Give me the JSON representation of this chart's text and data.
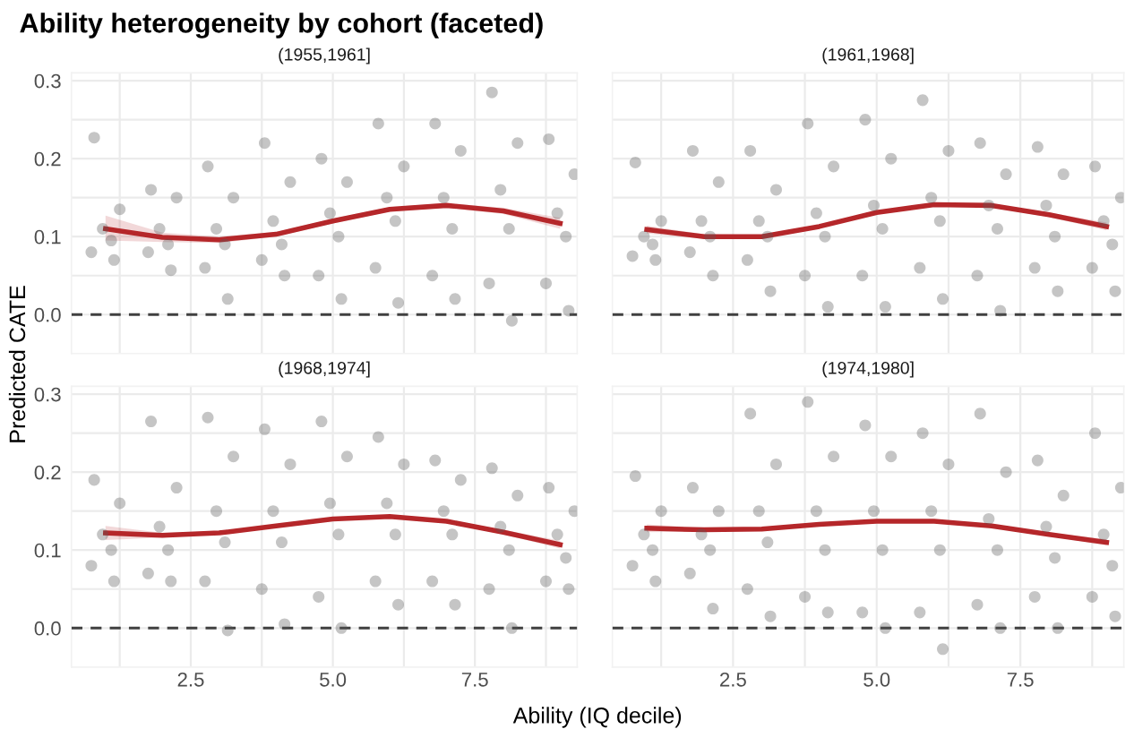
{
  "chart_data": [
    {
      "type": "scatter",
      "title": "Ability heterogeneity by cohort (faceted)",
      "subtitle": "(1955,1961]",
      "ylabel": "Predicted CATE",
      "xlim": [
        0.4,
        9.3
      ],
      "ylim": [
        -0.05,
        0.31
      ],
      "xticks": [
        {
          "value": 1.25,
          "label": null
        },
        {
          "value": 2.5,
          "label": null
        },
        {
          "value": 3.75,
          "label": null
        },
        {
          "value": 5,
          "label": null
        },
        {
          "value": 6.25,
          "label": null
        },
        {
          "value": 7.5,
          "label": null
        },
        {
          "value": 8.75,
          "label": null
        }
      ],
      "yticks": [
        {
          "value": 0,
          "label": "0.0"
        },
        {
          "value": 0.05,
          "label": null
        },
        0.1,
        {
          "value": 0.15,
          "label": null
        },
        0.2,
        {
          "value": 0.25,
          "label": null
        },
        0.3
      ],
      "grid": true,
      "tick_labels": "y",
      "marker": "circle",
      "legend": false,
      "ref_lines": [
        {
          "axis": "y",
          "value": 0,
          "color": "#404040",
          "line_style": "dashed"
        }
      ],
      "series": [
        {
          "color": "#595959",
          "x": [
            0.8,
            1.25,
            0.95,
            1.1,
            0.75,
            1.15,
            1.8,
            2.25,
            1.95,
            2.1,
            1.75,
            2.15,
            2.8,
            3.25,
            2.95,
            3.1,
            2.75,
            3.15,
            3.8,
            4.25,
            3.95,
            4.1,
            3.75,
            4.15,
            4.8,
            5.25,
            4.95,
            5.1,
            4.75,
            5.15,
            5.8,
            6.25,
            5.95,
            6.1,
            5.75,
            6.15,
            6.8,
            7.25,
            6.95,
            7.1,
            6.75,
            7.15,
            7.8,
            8.25,
            7.95,
            8.1,
            7.75,
            8.15,
            8.8,
            9.25,
            8.95,
            9.1,
            8.75,
            9.15
          ],
          "values": [
            0.227,
            0.135,
            0.11,
            0.095,
            0.08,
            0.07,
            0.16,
            0.15,
            0.11,
            0.09,
            0.08,
            0.057,
            0.19,
            0.15,
            0.11,
            0.09,
            0.06,
            0.02,
            0.22,
            0.17,
            0.12,
            0.09,
            0.07,
            0.05,
            0.2,
            0.17,
            0.13,
            0.1,
            0.05,
            0.02,
            0.245,
            0.19,
            0.15,
            0.12,
            0.06,
            0.015,
            0.245,
            0.21,
            0.15,
            0.11,
            0.05,
            0.02,
            0.285,
            0.22,
            0.16,
            0.11,
            0.04,
            -0.008,
            0.225,
            0.18,
            0.13,
            0.1,
            0.04,
            0.005
          ]
        },
        {
          "type": "line",
          "color": "#b5272a",
          "marker": "none",
          "x": [
            1,
            2,
            3,
            4,
            5,
            6,
            7,
            8,
            9
          ],
          "values": [
            0.11,
            0.099,
            0.096,
            0.103,
            0.12,
            0.135,
            0.14,
            0.133,
            0.117
          ],
          "lower": [
            0.095,
            0.093,
            0.092,
            0.1,
            0.117,
            0.132,
            0.137,
            0.129,
            0.11
          ],
          "upper": [
            0.127,
            0.105,
            0.1,
            0.106,
            0.123,
            0.138,
            0.143,
            0.137,
            0.124
          ]
        }
      ]
    },
    {
      "type": "scatter",
      "subtitle": "(1961,1968]",
      "xlim": [
        0.4,
        9.3
      ],
      "ylim": [
        -0.05,
        0.31
      ],
      "xticks": [
        {
          "value": 1.25,
          "label": null
        },
        {
          "value": 2.5,
          "label": null
        },
        {
          "value": 3.75,
          "label": null
        },
        {
          "value": 5,
          "label": null
        },
        {
          "value": 6.25,
          "label": null
        },
        {
          "value": 7.5,
          "label": null
        },
        {
          "value": 8.75,
          "label": null
        }
      ],
      "yticks": [
        {
          "value": 0,
          "label": null
        },
        {
          "value": 0.05,
          "label": null
        },
        {
          "value": 0.1,
          "label": null
        },
        {
          "value": 0.15,
          "label": null
        },
        {
          "value": 0.2,
          "label": null
        },
        {
          "value": 0.25,
          "label": null
        },
        {
          "value": 0.3,
          "label": null
        }
      ],
      "grid": true,
      "tick_labels": false,
      "marker": "circle",
      "legend": false,
      "ref_lines": [
        {
          "axis": "y",
          "value": 0,
          "color": "#404040",
          "line_style": "dashed"
        }
      ],
      "series": [
        {
          "color": "#595959",
          "x": [
            0.8,
            1.25,
            0.95,
            1.1,
            0.75,
            1.15,
            1.8,
            2.25,
            1.95,
            2.1,
            1.75,
            2.15,
            2.8,
            3.25,
            2.95,
            3.1,
            2.75,
            3.15,
            3.8,
            4.25,
            3.95,
            4.1,
            3.75,
            4.15,
            4.8,
            5.25,
            4.95,
            5.1,
            4.75,
            5.15,
            5.8,
            6.25,
            5.95,
            6.1,
            5.75,
            6.15,
            6.8,
            7.25,
            6.95,
            7.1,
            6.75,
            7.15,
            7.8,
            8.25,
            7.95,
            8.1,
            7.75,
            8.15,
            8.8,
            9.25,
            8.95,
            9.1,
            8.75,
            9.15
          ],
          "values": [
            0.195,
            0.12,
            0.1,
            0.09,
            0.075,
            0.07,
            0.21,
            0.17,
            0.12,
            0.1,
            0.08,
            0.05,
            0.21,
            0.16,
            0.12,
            0.1,
            0.07,
            0.03,
            0.245,
            0.19,
            0.13,
            0.1,
            0.05,
            0.01,
            0.25,
            0.2,
            0.14,
            0.11,
            0.05,
            0.01,
            0.275,
            0.21,
            0.15,
            0.12,
            0.06,
            0.02,
            0.22,
            0.18,
            0.14,
            0.11,
            0.05,
            0.005,
            0.215,
            0.18,
            0.14,
            0.1,
            0.06,
            0.03,
            0.19,
            0.15,
            0.12,
            0.09,
            0.06,
            0.03
          ]
        },
        {
          "type": "line",
          "color": "#b5272a",
          "marker": "none",
          "x": [
            1,
            2,
            3,
            4,
            5,
            6,
            7,
            8,
            9
          ],
          "values": [
            0.109,
            0.1,
            0.1,
            0.113,
            0.131,
            0.141,
            0.14,
            0.128,
            0.113
          ],
          "lower": [
            0.104,
            0.097,
            0.098,
            0.111,
            0.129,
            0.139,
            0.138,
            0.125,
            0.108
          ],
          "upper": [
            0.114,
            0.103,
            0.102,
            0.115,
            0.133,
            0.143,
            0.142,
            0.131,
            0.118
          ]
        }
      ]
    },
    {
      "type": "scatter",
      "subtitle": "(1968,1974]",
      "xlabel": "Ability (IQ decile)",
      "xlim": [
        0.4,
        9.3
      ],
      "ylim": [
        -0.05,
        0.31
      ],
      "xticks": [
        {
          "value": 1.25,
          "label": null
        },
        {
          "value": 2.5,
          "label": "2.5"
        },
        {
          "value": 3.75,
          "label": null
        },
        {
          "value": 5,
          "label": "5.0"
        },
        {
          "value": 6.25,
          "label": null
        },
        {
          "value": 7.5,
          "label": "7.5"
        },
        {
          "value": 8.75,
          "label": null
        }
      ],
      "yticks": [
        {
          "value": 0,
          "label": "0.0"
        },
        {
          "value": 0.05,
          "label": null
        },
        0.1,
        {
          "value": 0.15,
          "label": null
        },
        0.2,
        {
          "value": 0.25,
          "label": null
        },
        0.3
      ],
      "grid": true,
      "marker": "circle",
      "legend": false,
      "ref_lines": [
        {
          "axis": "y",
          "value": 0,
          "color": "#404040",
          "line_style": "dashed"
        }
      ],
      "series": [
        {
          "color": "#595959",
          "x": [
            0.8,
            1.25,
            0.95,
            1.1,
            0.75,
            1.15,
            1.8,
            2.25,
            1.95,
            2.1,
            1.75,
            2.15,
            2.8,
            3.25,
            2.95,
            3.1,
            2.75,
            3.15,
            3.8,
            4.25,
            3.95,
            4.1,
            3.75,
            4.15,
            4.8,
            5.25,
            4.95,
            5.1,
            4.75,
            5.15,
            5.8,
            6.25,
            5.95,
            6.1,
            5.75,
            6.15,
            6.8,
            7.25,
            6.95,
            7.1,
            6.75,
            7.15,
            7.8,
            8.25,
            7.95,
            8.1,
            7.75,
            8.15,
            8.8,
            9.25,
            8.95,
            9.1,
            8.75,
            9.15
          ],
          "values": [
            0.19,
            0.16,
            0.12,
            0.1,
            0.08,
            0.06,
            0.265,
            0.18,
            0.13,
            0.1,
            0.07,
            0.06,
            0.27,
            0.22,
            0.15,
            0.11,
            0.06,
            -0.003,
            0.255,
            0.21,
            0.15,
            0.11,
            0.05,
            0.005,
            0.265,
            0.22,
            0.16,
            0.12,
            0.04,
            0.0,
            0.245,
            0.21,
            0.16,
            0.12,
            0.06,
            0.03,
            0.215,
            0.19,
            0.15,
            0.12,
            0.06,
            0.03,
            0.205,
            0.17,
            0.13,
            0.1,
            0.05,
            0.0,
            0.18,
            0.15,
            0.12,
            0.09,
            0.06,
            0.05
          ]
        },
        {
          "type": "line",
          "color": "#b5272a",
          "marker": "none",
          "x": [
            1,
            2,
            3,
            4,
            5,
            6,
            7,
            8,
            9
          ],
          "values": [
            0.122,
            0.119,
            0.122,
            0.131,
            0.14,
            0.143,
            0.137,
            0.123,
            0.107
          ],
          "lower": [
            0.113,
            0.116,
            0.12,
            0.129,
            0.138,
            0.141,
            0.135,
            0.12,
            0.102
          ],
          "upper": [
            0.131,
            0.122,
            0.124,
            0.133,
            0.142,
            0.145,
            0.139,
            0.126,
            0.112
          ]
        }
      ]
    },
    {
      "type": "scatter",
      "subtitle": "(1974,1980]",
      "xlim": [
        0.4,
        9.3
      ],
      "ylim": [
        -0.05,
        0.31
      ],
      "xticks": [
        {
          "value": 1.25,
          "label": null
        },
        {
          "value": 2.5,
          "label": "2.5"
        },
        {
          "value": 3.75,
          "label": null
        },
        {
          "value": 5,
          "label": "5.0"
        },
        {
          "value": 6.25,
          "label": null
        },
        {
          "value": 7.5,
          "label": "7.5"
        },
        {
          "value": 8.75,
          "label": null
        }
      ],
      "yticks": [
        {
          "value": 0,
          "label": null
        },
        {
          "value": 0.05,
          "label": null
        },
        {
          "value": 0.1,
          "label": null
        },
        {
          "value": 0.15,
          "label": null
        },
        {
          "value": 0.2,
          "label": null
        },
        {
          "value": 0.25,
          "label": null
        },
        {
          "value": 0.3,
          "label": null
        }
      ],
      "grid": true,
      "tick_labels": "x",
      "marker": "circle",
      "legend": false,
      "ref_lines": [
        {
          "axis": "y",
          "value": 0,
          "color": "#404040",
          "line_style": "dashed"
        }
      ],
      "series": [
        {
          "color": "#595959",
          "x": [
            0.8,
            1.25,
            0.95,
            1.1,
            0.75,
            1.15,
            1.8,
            2.25,
            1.95,
            2.1,
            1.75,
            2.15,
            2.8,
            3.25,
            2.95,
            3.1,
            2.75,
            3.15,
            3.8,
            4.25,
            3.95,
            4.1,
            3.75,
            4.15,
            4.8,
            5.25,
            4.95,
            5.1,
            4.75,
            5.15,
            5.8,
            6.25,
            5.95,
            6.1,
            5.75,
            6.15,
            6.8,
            7.25,
            6.95,
            7.1,
            6.75,
            7.15,
            7.8,
            8.25,
            7.95,
            8.1,
            7.75,
            8.15,
            8.8,
            9.25,
            8.95,
            9.1,
            8.75,
            9.15
          ],
          "values": [
            0.195,
            0.15,
            0.12,
            0.1,
            0.08,
            0.06,
            0.18,
            0.15,
            0.12,
            0.1,
            0.07,
            0.025,
            0.275,
            0.21,
            0.15,
            0.11,
            0.05,
            0.015,
            0.29,
            0.22,
            0.15,
            0.1,
            0.04,
            0.02,
            0.26,
            0.22,
            0.15,
            0.1,
            0.02,
            0.0,
            0.25,
            0.21,
            0.15,
            0.1,
            0.02,
            -0.027,
            0.275,
            0.2,
            0.14,
            0.1,
            0.03,
            0.0,
            0.215,
            0.17,
            0.13,
            0.09,
            0.04,
            0.0,
            0.25,
            0.18,
            0.12,
            0.08,
            0.04,
            0.015
          ]
        },
        {
          "type": "line",
          "color": "#b5272a",
          "marker": "none",
          "x": [
            1,
            2,
            3,
            4,
            5,
            6,
            7,
            8,
            9
          ],
          "values": [
            0.128,
            0.126,
            0.127,
            0.133,
            0.137,
            0.137,
            0.131,
            0.12,
            0.11
          ],
          "lower": [
            0.123,
            0.124,
            0.125,
            0.131,
            0.135,
            0.135,
            0.129,
            0.118,
            0.106
          ],
          "upper": [
            0.133,
            0.128,
            0.129,
            0.135,
            0.139,
            0.139,
            0.133,
            0.122,
            0.114
          ]
        }
      ]
    }
  ]
}
